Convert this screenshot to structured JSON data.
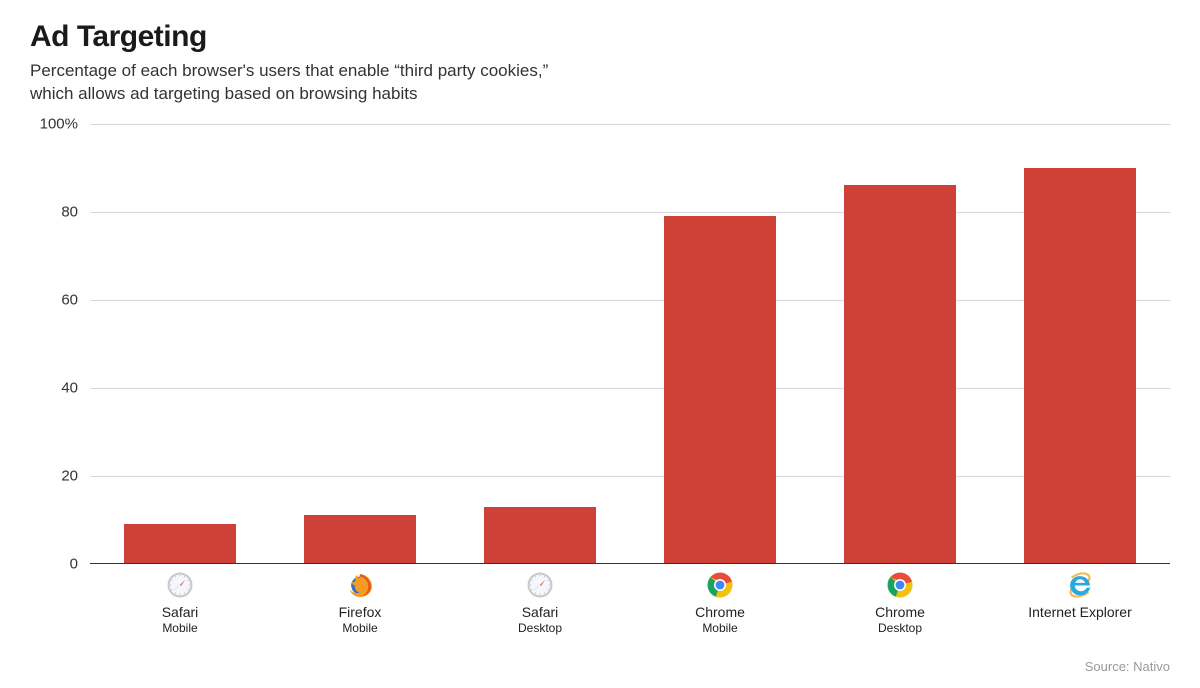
{
  "title": "Ad Targeting",
  "subtitle_line1": "Percentage of each browser's users that enable “third party cookies,”",
  "subtitle_line2": "which allows ad targeting based on browsing habits",
  "source": "Source: Nativo",
  "chart": {
    "type": "bar",
    "background_color": "#ffffff",
    "grid_color": "#d9d9d9",
    "axis_color": "#333333",
    "bar_color": "#cf4037",
    "ylim": [
      0,
      100
    ],
    "yticks": [
      0,
      20,
      40,
      60,
      80,
      100
    ],
    "ytick_labels": [
      "0",
      "20",
      "40",
      "60",
      "80",
      "100%"
    ],
    "title_fontsize": 30,
    "subtitle_fontsize": 17,
    "tick_fontsize": 15,
    "xlabel_name_fontsize": 14,
    "xlabel_platform_fontsize": 12,
    "bar_width_ratio": 0.62,
    "categories": [
      {
        "name": "Safari",
        "platform": "Mobile",
        "value": 9,
        "icon": "safari"
      },
      {
        "name": "Firefox",
        "platform": "Mobile",
        "value": 11,
        "icon": "firefox"
      },
      {
        "name": "Safari",
        "platform": "Desktop",
        "value": 13,
        "icon": "safari"
      },
      {
        "name": "Chrome",
        "platform": "Mobile",
        "value": 79,
        "icon": "chrome"
      },
      {
        "name": "Chrome",
        "platform": "Desktop",
        "value": 86,
        "icon": "chrome"
      },
      {
        "name": "Internet Explorer",
        "platform": "",
        "value": 90,
        "icon": "ie"
      }
    ]
  },
  "icons": {
    "safari": {
      "outer": "#c9c9c9",
      "face": "#f4f7fb",
      "needle_red": "#e8513c",
      "needle_white": "#ffffff",
      "ticks": "#7a7a7a"
    },
    "firefox": {
      "globe": "#3b6fbf",
      "fox1": "#f59b23",
      "fox2": "#e05a1d"
    },
    "chrome": {
      "ring": "#ffffff",
      "red": "#e74c3c",
      "yellow": "#f4c20d",
      "green": "#1aa260",
      "blue": "#4285f4"
    },
    "ie": {
      "ring": "#2aa8e0",
      "halo": "#f3b94d"
    }
  }
}
